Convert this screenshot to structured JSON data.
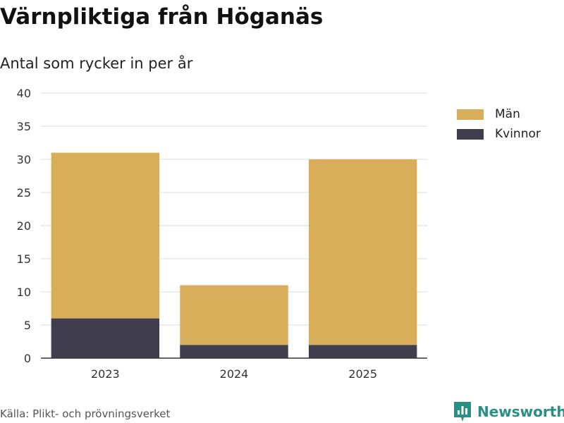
{
  "title": "Värnpliktiga från Höganäs",
  "subtitle": "Antal som rycker in per år",
  "source": "Källa: Plikt- och prövningsverket",
  "brand": "Newsworthy",
  "colors": {
    "man": "#d9ae5a",
    "kvinnor": "#403e4c",
    "grid": "#dddddd",
    "axis": "#333333",
    "brand": "#2a8f84"
  },
  "chart_data": {
    "type": "bar",
    "stacked": true,
    "categories": [
      "2023",
      "2024",
      "2025"
    ],
    "series": [
      {
        "name": "Kvinnor",
        "values": [
          6,
          2,
          2
        ]
      },
      {
        "name": "Män",
        "values": [
          25,
          9,
          28
        ]
      }
    ],
    "ylim": [
      0,
      40
    ],
    "yticks": [
      0,
      5,
      10,
      15,
      20,
      25,
      30,
      35,
      40
    ],
    "grid": true,
    "legend_position": "right"
  },
  "legend": [
    {
      "label": "Män",
      "color": "#d9ae5a"
    },
    {
      "label": "Kvinnor",
      "color": "#403e4c"
    }
  ]
}
